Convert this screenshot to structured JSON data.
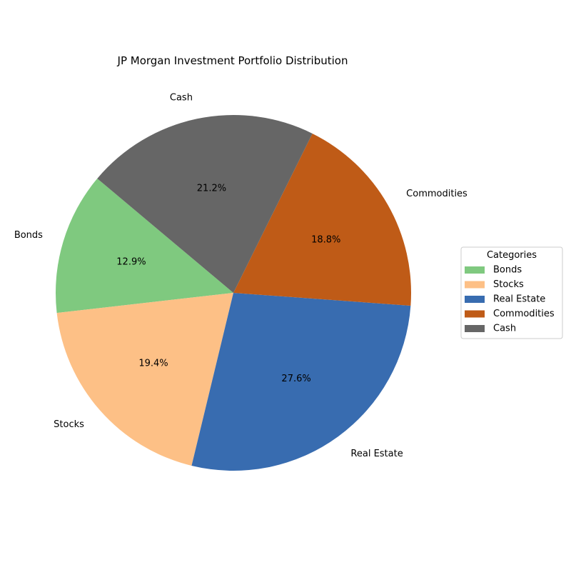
{
  "chart_data": {
    "type": "pie",
    "title": "JP Morgan Investment Portfolio Distribution",
    "categories": [
      "Bonds",
      "Stocks",
      "Real Estate",
      "Commodities",
      "Cash"
    ],
    "values": [
      12.9,
      19.4,
      27.6,
      18.8,
      21.2
    ],
    "value_labels": [
      "12.9%",
      "19.4%",
      "27.6%",
      "18.8%",
      "21.2%"
    ],
    "colors": [
      "#7fc97f",
      "#fdc086",
      "#386cb0",
      "#bf5b17",
      "#666666"
    ],
    "start_angle_deg": 140,
    "direction": "counterclockwise",
    "legend": {
      "title": "Categories",
      "placement": "right"
    }
  }
}
